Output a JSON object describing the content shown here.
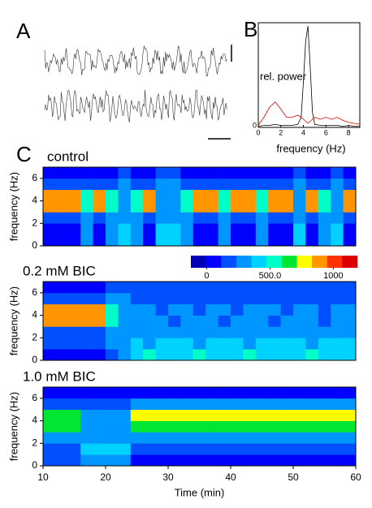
{
  "panel_labels": [
    "A",
    "B",
    "C"
  ],
  "colorbar": {
    "colors": [
      "#0000b4",
      "#0000ff",
      "#0050ff",
      "#0096ff",
      "#00d2ff",
      "#00ffc8",
      "#00e632",
      "#ffff00",
      "#ff9600",
      "#ff3200",
      "#dc0000"
    ],
    "zlim": [
      -125,
      1190
    ],
    "ticks": [
      0,
      {
        "value": 500,
        "label": "500.0"
      },
      1000
    ]
  },
  "chart_data": [
    {
      "type": "line",
      "xlabel": "frequency (Hz)",
      "ylabel": "rel. power",
      "x": [
        0,
        0.5,
        1,
        1.5,
        2,
        2.5,
        3,
        3.5,
        3.8,
        4,
        4.2,
        4.4,
        4.6,
        4.8,
        5,
        5.5,
        6,
        6.5,
        7,
        7.5,
        8,
        8.5,
        9
      ],
      "series": [
        {
          "color": "#000000",
          "values": [
            0.01,
            0.02,
            0.02,
            0.03,
            0.02,
            0.02,
            0.02,
            0.03,
            0.1,
            0.45,
            0.85,
            1.0,
            0.6,
            0.15,
            0.03,
            0.02,
            0.02,
            0.02,
            0.02,
            0.01,
            0.02,
            0.01,
            0.01
          ]
        },
        {
          "color": "#e00000",
          "values": [
            0.02,
            0.1,
            0.2,
            0.25,
            0.18,
            0.1,
            0.1,
            0.12,
            0.1,
            0.08,
            0.06,
            0.04,
            0.06,
            0.08,
            0.1,
            0.08,
            0.1,
            0.08,
            0.1,
            0.07,
            0.05,
            0.04,
            0.03
          ]
        }
      ],
      "xlim": [
        0,
        9
      ],
      "xticks": [
        0,
        2,
        4,
        6,
        8
      ],
      "ylim": [
        0,
        1
      ],
      "yticks": [
        0
      ]
    },
    {
      "type": "heatmap",
      "title": "control",
      "ylabel": "frequency (Hz)",
      "xlim": [
        10,
        60
      ],
      "ylim": [
        0,
        7
      ],
      "yticks": [
        0,
        2,
        4,
        6
      ],
      "z": [
        [
          100,
          100,
          100,
          250,
          100,
          250,
          400,
          250,
          100,
          400,
          400,
          250,
          100,
          100,
          250,
          100,
          100,
          250,
          100,
          100,
          400,
          100,
          250,
          400,
          100
        ],
        [
          100,
          100,
          100,
          250,
          100,
          250,
          400,
          250,
          100,
          400,
          400,
          250,
          100,
          100,
          250,
          100,
          100,
          250,
          100,
          100,
          400,
          100,
          250,
          400,
          100
        ],
        [
          200,
          200,
          200,
          250,
          200,
          250,
          300,
          250,
          200,
          300,
          300,
          250,
          200,
          200,
          250,
          200,
          200,
          250,
          200,
          200,
          300,
          200,
          250,
          300,
          200
        ],
        [
          900,
          900,
          900,
          550,
          900,
          550,
          250,
          550,
          900,
          250,
          250,
          550,
          900,
          900,
          550,
          900,
          900,
          550,
          900,
          900,
          250,
          900,
          550,
          250,
          900
        ],
        [
          850,
          850,
          850,
          500,
          850,
          500,
          250,
          500,
          850,
          250,
          250,
          500,
          850,
          850,
          500,
          850,
          850,
          500,
          850,
          850,
          250,
          850,
          500,
          250,
          850
        ],
        [
          150,
          150,
          150,
          200,
          150,
          200,
          250,
          200,
          150,
          250,
          250,
          200,
          150,
          150,
          200,
          150,
          150,
          200,
          150,
          150,
          250,
          150,
          200,
          250,
          150
        ],
        [
          60,
          60,
          60,
          80,
          60,
          80,
          150,
          80,
          60,
          150,
          150,
          80,
          60,
          60,
          80,
          60,
          60,
          80,
          60,
          60,
          150,
          60,
          80,
          150,
          60
        ]
      ]
    },
    {
      "type": "heatmap",
      "title": "0.2 mM BIC",
      "ylabel": "frequency (Hz)",
      "xlim": [
        10,
        60
      ],
      "ylim": [
        0,
        7
      ],
      "yticks": [
        0,
        2,
        4,
        6
      ],
      "z": [
        [
          100,
          100,
          100,
          100,
          100,
          200,
          250,
          450,
          500,
          450,
          400,
          450,
          500,
          450,
          400,
          450,
          500,
          450,
          450,
          400,
          450,
          500,
          450,
          400,
          450
        ],
        [
          150,
          150,
          150,
          150,
          150,
          250,
          300,
          400,
          350,
          400,
          450,
          400,
          350,
          400,
          450,
          400,
          350,
          400,
          400,
          450,
          400,
          350,
          400,
          450,
          400
        ],
        [
          200,
          200,
          200,
          200,
          200,
          300,
          300,
          300,
          300,
          250,
          300,
          300,
          250,
          300,
          300,
          250,
          300,
          300,
          250,
          300,
          300,
          250,
          300,
          300,
          250
        ],
        [
          900,
          900,
          900,
          900,
          900,
          500,
          300,
          250,
          250,
          250,
          200,
          250,
          250,
          250,
          200,
          250,
          250,
          250,
          200,
          250,
          250,
          250,
          200,
          250,
          250
        ],
        [
          850,
          850,
          850,
          850,
          850,
          550,
          300,
          250,
          250,
          200,
          250,
          250,
          200,
          250,
          250,
          200,
          250,
          250,
          250,
          200,
          250,
          250,
          200,
          250,
          250
        ],
        [
          200,
          200,
          200,
          200,
          200,
          250,
          250,
          200,
          200,
          200,
          200,
          200,
          200,
          200,
          200,
          200,
          200,
          200,
          200,
          200,
          200,
          200,
          200,
          200,
          200
        ],
        [
          100,
          100,
          100,
          100,
          100,
          150,
          200,
          200,
          200,
          200,
          200,
          200,
          200,
          200,
          200,
          200,
          200,
          200,
          200,
          200,
          200,
          200,
          200,
          200,
          200
        ]
      ]
    },
    {
      "type": "heatmap",
      "title": "1.0 mM BIC",
      "ylabel": "frequency (Hz)",
      "xlabel": "Time (min)",
      "xlim": [
        10,
        60
      ],
      "ylim": [
        0,
        7
      ],
      "yticks": [
        0,
        2,
        4,
        6
      ],
      "xticks": [
        10,
        20,
        30,
        40,
        50,
        60
      ],
      "z": [
        [
          150,
          150,
          150,
          300,
          300,
          300,
          300,
          100,
          100,
          100,
          100,
          100,
          100,
          100,
          100,
          100,
          100,
          100,
          100,
          100,
          100,
          100,
          100,
          100,
          100
        ],
        [
          200,
          200,
          200,
          400,
          400,
          400,
          400,
          150,
          150,
          150,
          150,
          150,
          150,
          150,
          150,
          150,
          150,
          150,
          150,
          150,
          150,
          150,
          150,
          150,
          150
        ],
        [
          250,
          250,
          250,
          250,
          250,
          250,
          250,
          300,
          300,
          300,
          300,
          300,
          300,
          300,
          300,
          300,
          300,
          300,
          300,
          300,
          300,
          300,
          300,
          300,
          300
        ],
        [
          600,
          600,
          600,
          250,
          250,
          250,
          250,
          650,
          650,
          650,
          650,
          650,
          650,
          650,
          650,
          650,
          650,
          650,
          650,
          650,
          650,
          650,
          650,
          650,
          650
        ],
        [
          600,
          600,
          600,
          300,
          300,
          300,
          300,
          750,
          750,
          750,
          750,
          750,
          750,
          750,
          750,
          750,
          750,
          750,
          750,
          750,
          750,
          750,
          750,
          750,
          750
        ],
        [
          150,
          150,
          150,
          150,
          150,
          150,
          150,
          350,
          350,
          350,
          350,
          350,
          350,
          350,
          350,
          350,
          350,
          350,
          350,
          350,
          350,
          350,
          350,
          350,
          350
        ],
        [
          80,
          80,
          80,
          80,
          80,
          80,
          80,
          80,
          80,
          80,
          80,
          80,
          80,
          80,
          80,
          80,
          80,
          80,
          80,
          80,
          80,
          80,
          80,
          80,
          80
        ]
      ]
    }
  ]
}
